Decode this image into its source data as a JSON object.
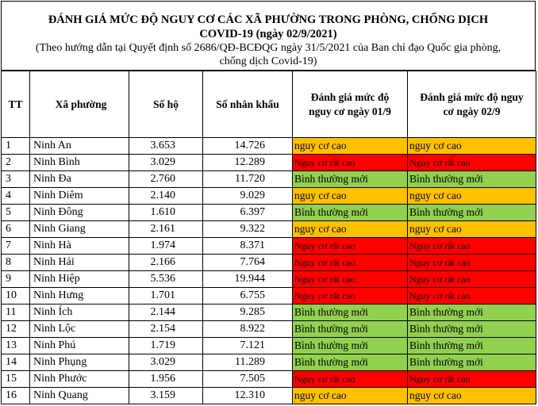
{
  "header": {
    "title_line1": "ĐÁNH GIÁ MỨC ĐỘ NGUY CƠ CÁC XÃ PHƯỜNG TRONG PHÒNG, CHỐNG DỊCH",
    "title_line2": "COVID-19 (ngày 02/9/2021)",
    "subtitle_line1": "(Theo hướng dẫn tại Quyết định số 2686/QĐ-BCĐQG ngày 31/5/2021 của Ban chỉ đạo Quốc gia phòng,",
    "subtitle_line2": "chống dịch Covid-19)"
  },
  "table": {
    "columns": [
      "TT",
      "Xã phường",
      "Số hộ",
      "Số nhân khẩu",
      "Đánh giá mức độ nguy cơ ngày 01/9",
      "Đánh giá mức độ nguy cơ ngày 02/9"
    ],
    "column_lines": {
      "col5_line1": "Đánh giá mức độ",
      "col5_line2": "nguy cơ ngày 01/9",
      "col6_line1": "Đánh giá mức độ nguy",
      "col6_line2": "cơ ngày 02/9"
    },
    "level_colors": {
      "nguy cơ cao": "#ffc000",
      "Nguy cơ rất cao": "#ff0000",
      "Bình thường mới": "#92d050"
    },
    "rows": [
      {
        "tt": "1",
        "name": "Ninh An",
        "households": "3.653",
        "population": "14.726",
        "level_0109": "nguy cơ cao",
        "level_0209": "nguy cơ cao"
      },
      {
        "tt": "2",
        "name": "Ninh Bình",
        "households": "3.029",
        "population": "12.289",
        "level_0109": "Nguy cơ rất cao",
        "level_0209": "Nguy cơ rất cao"
      },
      {
        "tt": "3",
        "name": "Ninh Đa",
        "households": "2.760",
        "population": "11.720",
        "level_0109": "Bình thường mới",
        "level_0209": "Bình thường mới"
      },
      {
        "tt": "4",
        "name": "Ninh Diêm",
        "households": "2.140",
        "population": "9.029",
        "level_0109": "nguy cơ cao",
        "level_0209": "nguy cơ cao"
      },
      {
        "tt": "5",
        "name": "Ninh Đông",
        "households": "1.610",
        "population": "6.397",
        "level_0109": "Bình thường mới",
        "level_0209": "Bình thường mới"
      },
      {
        "tt": "6",
        "name": "Ninh Giang",
        "households": "2.161",
        "population": "9.322",
        "level_0109": "nguy cơ cao",
        "level_0209": "nguy cơ cao"
      },
      {
        "tt": "7",
        "name": "Ninh Hà",
        "households": "1.974",
        "population": "8.371",
        "level_0109": "Nguy cơ rất cao",
        "level_0209": "Nguy cơ rất cao"
      },
      {
        "tt": "8",
        "name": "Ninh Hải",
        "households": "2.166",
        "population": "7.764",
        "level_0109": "Nguy cơ rất cao",
        "level_0209": "Nguy cơ rất cao"
      },
      {
        "tt": "9",
        "name": "Ninh Hiệp",
        "households": "5.536",
        "population": "19.944",
        "level_0109": "Nguy cơ rất cao",
        "level_0209": "Nguy cơ rất cao"
      },
      {
        "tt": "10",
        "name": "Ninh Hưng",
        "households": "1.701",
        "population": "6.755",
        "level_0109": "Nguy cơ rất cao",
        "level_0209": "Nguy cơ rất cao"
      },
      {
        "tt": "11",
        "name": "Ninh Ích",
        "households": "2.144",
        "population": "9.285",
        "level_0109": "Bình thường mới",
        "level_0209": "Bình thường mới"
      },
      {
        "tt": "12",
        "name": "Ninh Lộc",
        "households": "2.154",
        "population": "8.922",
        "level_0109": "Bình thường mới",
        "level_0209": "Bình thường mới"
      },
      {
        "tt": "13",
        "name": "Ninh Phú",
        "households": "1.719",
        "population": "7.121",
        "level_0109": "Bình thường mới",
        "level_0209": "Bình thường mới"
      },
      {
        "tt": "14",
        "name": "Ninh Phụng",
        "households": "3.029",
        "population": "11.289",
        "level_0109": "Bình thường mới",
        "level_0209": "Bình thường mới"
      },
      {
        "tt": "15",
        "name": "Ninh Phước",
        "households": "1.956",
        "population": "7.505",
        "level_0109": "Nguy cơ rất cao",
        "level_0209": "Nguy cơ rất cao"
      },
      {
        "tt": "16",
        "name": "Ninh Quang",
        "households": "3.159",
        "population": "12.310",
        "level_0109": "nguy cơ cao",
        "level_0209": "nguy cơ cao"
      }
    ]
  }
}
